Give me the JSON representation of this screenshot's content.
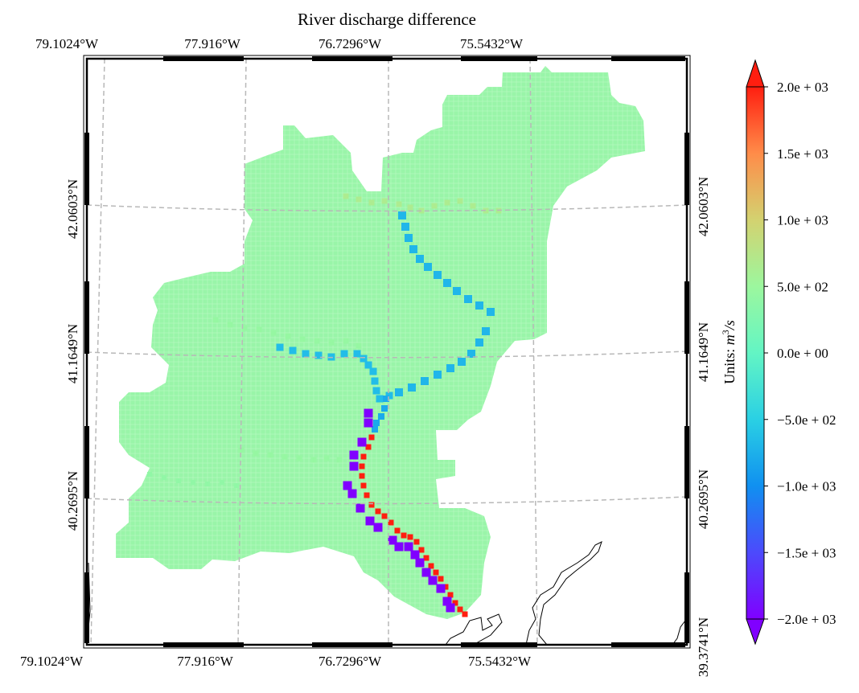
{
  "chart_data": {
    "type": "heatmap",
    "title": "River discharge difference",
    "projection": "lambert-conformal map",
    "top_lon_labels": [
      "79.1024°W",
      "77.916°W",
      "76.7296°W",
      "75.5432°W"
    ],
    "bottom_lon_labels": [
      "79.1024°W",
      "77.916°W",
      "76.7296°W",
      "75.5432°W"
    ],
    "left_lat_labels": [
      "42.0603°N",
      "41.1649°N",
      "40.2695°N"
    ],
    "right_lat_labels": [
      "42.0603°N",
      "41.1649°N",
      "40.2695°N",
      "39.3741°N"
    ],
    "gridlines": true,
    "grid_style": "dashed-gray",
    "colorbar": {
      "label": "Units: m³/s",
      "label_prefix": "Units: ",
      "label_unit": "m",
      "label_exp": "3",
      "label_tail": "/s",
      "colormap": "rainbow",
      "min": -2000,
      "max": 2000,
      "extend": "both",
      "ticks": [
        -2000,
        -1500,
        -1000,
        -500,
        0,
        500,
        1000,
        1500,
        2000
      ],
      "tick_labels": [
        "−2.0e + 03",
        "−1.5e + 03",
        "−1.0e + 03",
        "−5.0e + 02",
        "0.0e + 00",
        "5.0e + 02",
        "1.0e + 03",
        "1.5e + 03",
        "2.0e + 03"
      ]
    },
    "background_value": -100,
    "river_cells": [
      {
        "segment": "upper north branch",
        "value": 650
      },
      {
        "segment": "north branch channel",
        "value": -700
      },
      {
        "segment": "west branch",
        "value": 450
      },
      {
        "segment": "west branch channel",
        "value": -650
      },
      {
        "segment": "confluence reach",
        "value": -800
      },
      {
        "segment": "main stem east bank",
        "value": 2000
      },
      {
        "segment": "main stem west bank",
        "value": -2000
      },
      {
        "segment": "southwest tributary",
        "value": 400
      }
    ]
  }
}
